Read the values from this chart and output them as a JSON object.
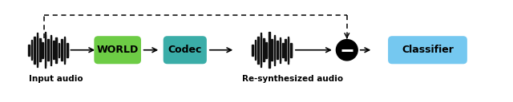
{
  "bg_color": "#ffffff",
  "world_box_color": "#6dcc45",
  "codec_box_color": "#3aada8",
  "classifier_box_color": "#75c8f0",
  "box_text_color": "#000000",
  "arrow_color": "#000000",
  "dashed_color": "#000000",
  "label_input": "Input audio",
  "label_resynth": "Re-synthesized audio",
  "label_world": "WORLD",
  "label_codec": "Codec",
  "label_classifier": "Classifier",
  "waveform_bars": [
    0.3,
    0.55,
    0.75,
    0.95,
    0.65,
    0.45,
    1.0,
    0.6,
    0.85,
    0.5,
    0.7,
    0.4,
    0.6,
    0.75,
    0.4
  ],
  "figsize": [
    6.4,
    1.28
  ],
  "dpi": 100
}
